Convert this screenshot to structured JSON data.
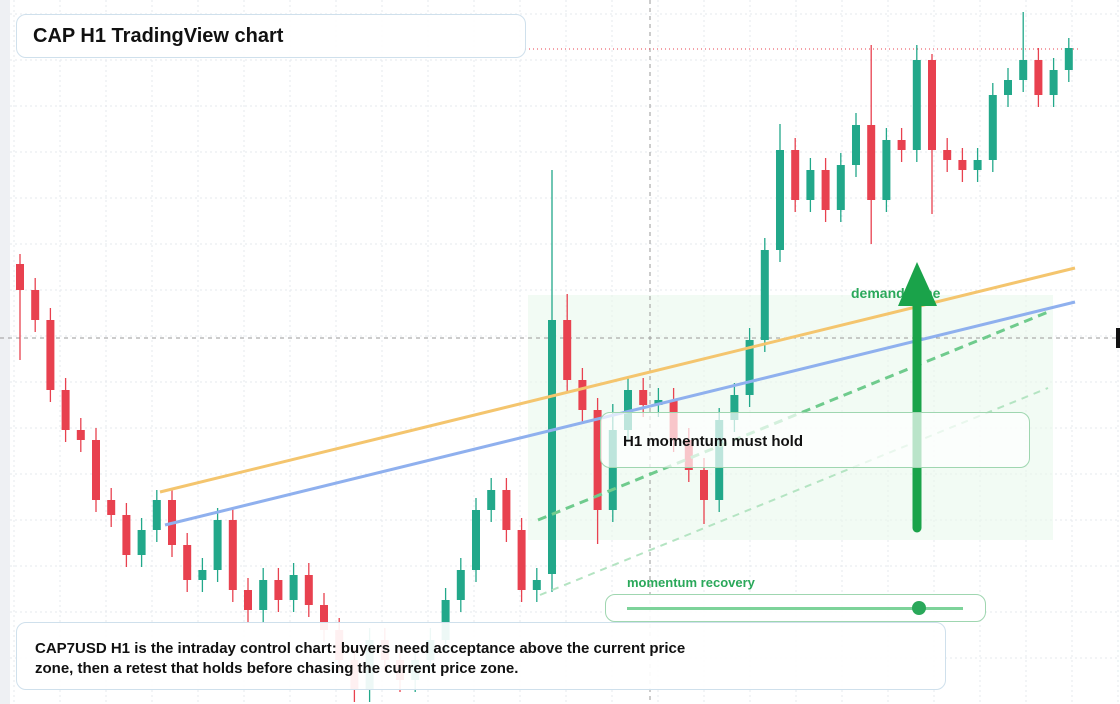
{
  "header": {
    "title": "CAP H1 TradingView chart"
  },
  "chart_data": {
    "type": "candlestick",
    "ylim": [
      0,
      704
    ],
    "up_color": "#22a88a",
    "down_color": "#e8414f",
    "open": [
      440,
      414,
      384,
      314,
      274,
      264,
      204,
      189,
      149,
      174,
      204,
      159,
      124,
      134,
      184,
      114,
      94,
      124,
      104,
      129,
      99,
      74,
      44,
      14,
      64,
      44,
      24,
      44,
      64,
      104,
      134,
      194,
      214,
      174,
      114,
      130,
      384,
      324,
      294,
      194,
      274,
      314,
      299,
      304,
      264,
      234,
      204,
      284,
      309,
      364,
      454,
      554,
      504,
      534,
      494,
      539,
      579,
      504,
      564,
      554,
      644,
      554,
      544,
      534,
      544,
      609,
      624,
      644,
      609,
      634
    ],
    "high": [
      450,
      426,
      396,
      326,
      286,
      276,
      216,
      201,
      186,
      214,
      216,
      171,
      146,
      196,
      196,
      126,
      136,
      136,
      141,
      141,
      111,
      86,
      56,
      76,
      76,
      56,
      56,
      76,
      116,
      146,
      206,
      226,
      226,
      186,
      136,
      534,
      410,
      336,
      306,
      300,
      326,
      326,
      316,
      316,
      276,
      246,
      296,
      321,
      376,
      466,
      580,
      566,
      546,
      546,
      551,
      591,
      659,
      576,
      576,
      659,
      650,
      566,
      556,
      556,
      621,
      636,
      692,
      656,
      646,
      666
    ],
    "low": [
      344,
      372,
      302,
      262,
      252,
      192,
      177,
      137,
      137,
      162,
      147,
      112,
      112,
      122,
      102,
      82,
      82,
      92,
      92,
      87,
      62,
      32,
      2,
      2,
      32,
      12,
      12,
      32,
      52,
      92,
      122,
      182,
      162,
      102,
      102,
      112,
      312,
      282,
      160,
      182,
      262,
      287,
      287,
      252,
      222,
      180,
      192,
      272,
      297,
      352,
      442,
      492,
      492,
      482,
      482,
      527,
      460,
      492,
      542,
      542,
      490,
      532,
      522,
      522,
      532,
      597,
      612,
      597,
      597,
      622
    ],
    "close": [
      414,
      384,
      314,
      274,
      264,
      204,
      189,
      149,
      174,
      204,
      159,
      124,
      134,
      184,
      114,
      94,
      124,
      104,
      129,
      99,
      74,
      44,
      14,
      64,
      44,
      24,
      44,
      64,
      104,
      134,
      194,
      214,
      174,
      114,
      124,
      384,
      324,
      294,
      194,
      274,
      314,
      299,
      304,
      264,
      234,
      204,
      284,
      309,
      364,
      454,
      554,
      504,
      534,
      494,
      539,
      579,
      504,
      564,
      554,
      644,
      554,
      544,
      534,
      544,
      609,
      624,
      644,
      609,
      634,
      656
    ],
    "annotations": [
      "demand zone",
      "H1 momentum must hold",
      "momentum recovery"
    ]
  },
  "caption": "CAP7USD H1 is the intraday control chart: buyers need acceptance above the current price zone, then a retest that holds before chasing the current price zone."
}
